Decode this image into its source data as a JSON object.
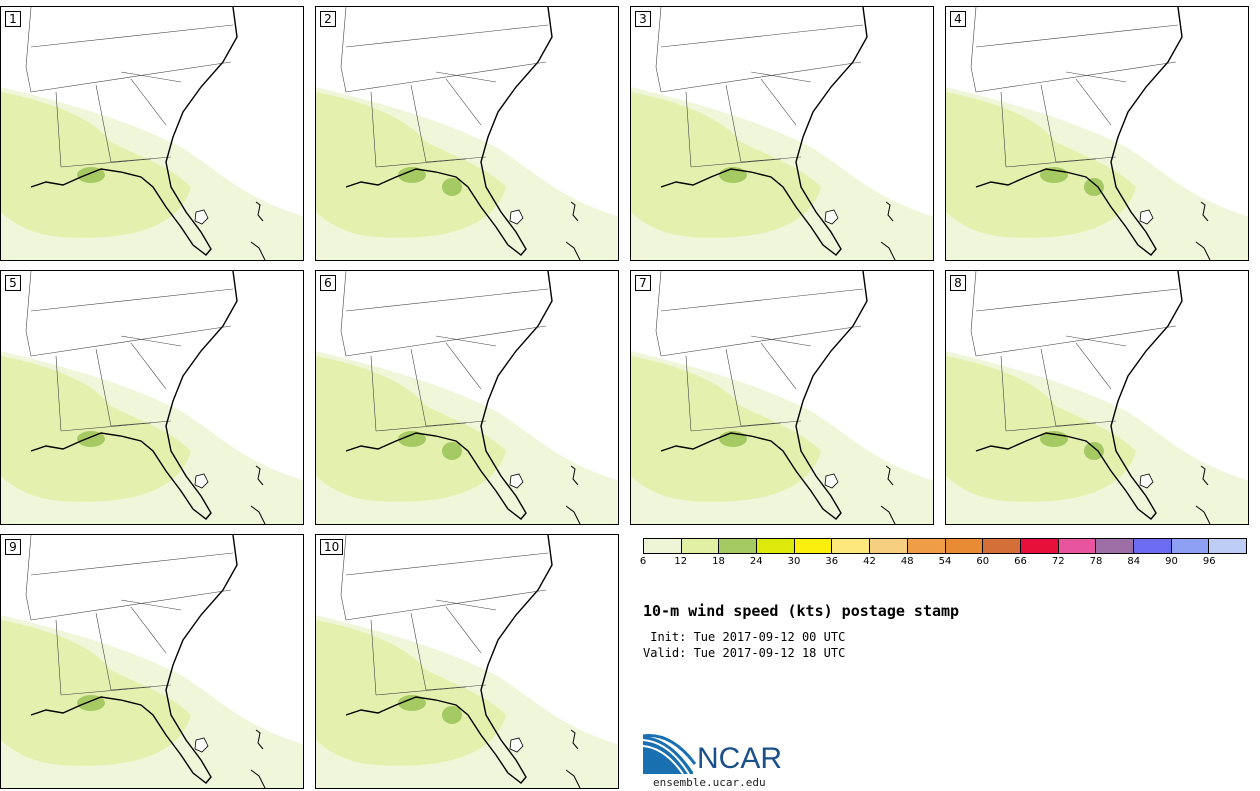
{
  "panels": [
    {
      "label": "1"
    },
    {
      "label": "2"
    },
    {
      "label": "3"
    },
    {
      "label": "4"
    },
    {
      "label": "5"
    },
    {
      "label": "6"
    },
    {
      "label": "7"
    },
    {
      "label": "8"
    },
    {
      "label": "9"
    },
    {
      "label": "10"
    }
  ],
  "colorbar": {
    "colors": [
      "#eef5d6",
      "#e2f0a6",
      "#a5c963",
      "#dde90a",
      "#fbef0d",
      "#fde87e",
      "#f6cf80",
      "#ef9d47",
      "#e98a35",
      "#d56f3a",
      "#e6103a",
      "#e8559e",
      "#9e6ea6",
      "#6c6cf2",
      "#8ea0f3",
      "#bdcdf5"
    ],
    "ticks": [
      "6",
      "12",
      "18",
      "24",
      "30",
      "36",
      "42",
      "48",
      "54",
      "60",
      "66",
      "72",
      "78",
      "84",
      "90",
      "96"
    ]
  },
  "title": "10-m wind speed (kts) postage stamp",
  "init": " Init: Tue 2017-09-12 00 UTC",
  "valid": "Valid: Tue 2017-09-12 18 UTC",
  "logo": {
    "name": "NCAR",
    "url": "ensemble.ucar.edu"
  }
}
